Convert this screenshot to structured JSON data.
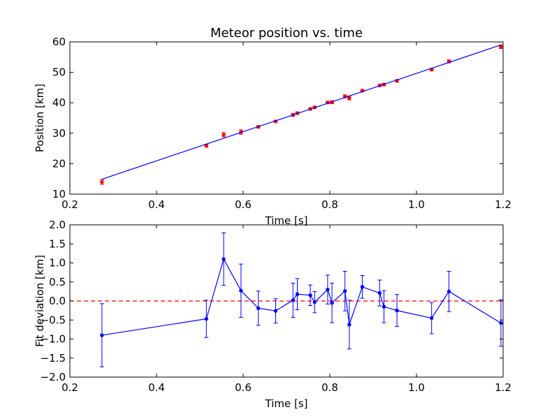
{
  "chart_data": [
    {
      "type": "scatter",
      "title": "Meteor position vs. time",
      "xlabel": "Time [s]",
      "ylabel": "Position [km]",
      "xlim": [
        0.2,
        1.2
      ],
      "ylim": [
        10,
        60
      ],
      "xticks": [
        0.2,
        0.4,
        0.6,
        0.8,
        1.0,
        1.2
      ],
      "xtick_labels": [
        "0.2",
        "0.4",
        "0.6",
        "0.8",
        "1.0",
        "1.2"
      ],
      "yticks": [
        10,
        20,
        30,
        40,
        50,
        60
      ],
      "ytick_labels": [
        "10",
        "20",
        "30",
        "40",
        "50",
        "60"
      ],
      "grid": false,
      "series": [
        {
          "kind": "errorbar-points",
          "color": "#ff0000",
          "x": [
            0.274,
            0.515,
            0.555,
            0.595,
            0.635,
            0.675,
            0.715,
            0.725,
            0.755,
            0.765,
            0.795,
            0.805,
            0.835,
            0.845,
            0.875,
            0.915,
            0.925,
            0.955,
            1.035,
            1.075,
            1.195
          ],
          "y": [
            14.0,
            25.9,
            29.5,
            30.4,
            32.1,
            33.9,
            36.0,
            36.6,
            38.0,
            38.5,
            40.1,
            40.2,
            42.1,
            41.6,
            44.0,
            45.7,
            46.0,
            47.2,
            50.9,
            53.6,
            58.4
          ],
          "yerr": [
            0.8,
            0.5,
            0.7,
            0.7,
            0.4,
            0.3,
            0.45,
            0.4,
            0.35,
            0.3,
            0.4,
            0.5,
            0.5,
            0.65,
            0.3,
            0.35,
            0.4,
            0.4,
            0.4,
            0.5,
            0.6
          ]
        },
        {
          "kind": "line",
          "color": "#0000ff",
          "x": [
            0.274,
            1.195
          ],
          "y": [
            14.9,
            59.0
          ]
        }
      ]
    },
    {
      "type": "line",
      "title": "",
      "xlabel": "Time [s]",
      "ylabel": "Fit deviation [km]",
      "xlim": [
        0.2,
        1.2
      ],
      "ylim": [
        -2.0,
        2.0
      ],
      "xticks": [
        0.2,
        0.4,
        0.6,
        0.8,
        1.0,
        1.2
      ],
      "xtick_labels": [
        "0.2",
        "0.4",
        "0.6",
        "0.8",
        "1.0",
        "1.2"
      ],
      "yticks": [
        -2.0,
        -1.5,
        -1.0,
        -0.5,
        0.0,
        0.5,
        1.0,
        1.5,
        2.0
      ],
      "ytick_labels": [
        "−2.0",
        "−1.5",
        "−1.0",
        "−0.5",
        "0.0",
        "0.5",
        "1.0",
        "1.5",
        "2.0"
      ],
      "grid": false,
      "reference_line": {
        "y": 0.0,
        "color": "#ff0000",
        "style": "dashed"
      },
      "series": [
        {
          "kind": "errorbar-line",
          "color": "#0000ff",
          "x": [
            0.274,
            0.515,
            0.555,
            0.595,
            0.635,
            0.675,
            0.715,
            0.725,
            0.755,
            0.765,
            0.795,
            0.805,
            0.835,
            0.845,
            0.875,
            0.915,
            0.925,
            0.955,
            1.035,
            1.075,
            1.195
          ],
          "y": [
            -0.9,
            -0.47,
            1.1,
            0.27,
            -0.19,
            -0.26,
            0.02,
            0.18,
            0.15,
            -0.03,
            0.3,
            -0.05,
            0.26,
            -0.62,
            0.37,
            0.21,
            -0.15,
            -0.25,
            -0.45,
            0.25,
            -0.58
          ],
          "yerr": [
            0.83,
            0.49,
            0.69,
            0.7,
            0.45,
            0.32,
            0.45,
            0.41,
            0.27,
            0.28,
            0.38,
            0.52,
            0.52,
            0.64,
            0.3,
            0.34,
            0.42,
            0.42,
            0.41,
            0.53,
            0.61
          ]
        }
      ]
    }
  ]
}
